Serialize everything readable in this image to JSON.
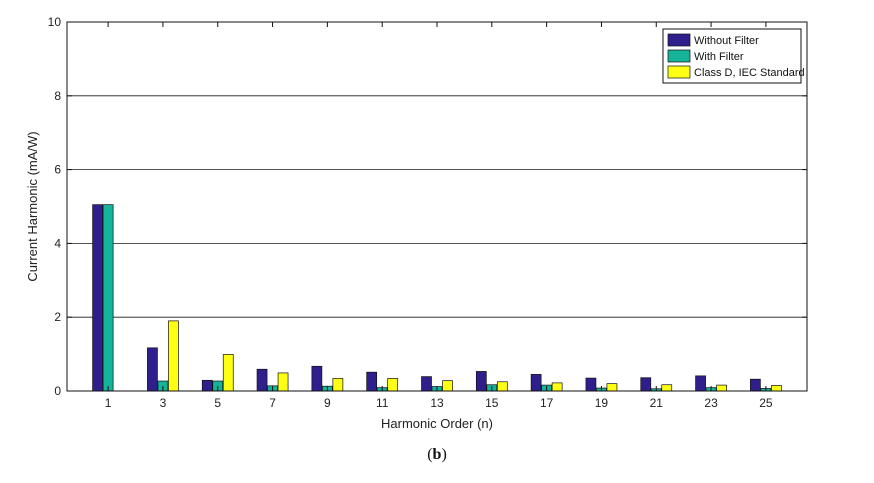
{
  "chart_data": {
    "type": "bar",
    "categories": [
      "1",
      "3",
      "5",
      "7",
      "9",
      "11",
      "13",
      "15",
      "17",
      "19",
      "21",
      "23",
      "25"
    ],
    "series": [
      {
        "name": "Without Filter",
        "color": "#2e1f8c",
        "values": [
          5.05,
          1.17,
          0.29,
          0.59,
          0.67,
          0.51,
          0.39,
          0.53,
          0.45,
          0.35,
          0.36,
          0.41,
          0.32
        ]
      },
      {
        "name": "With Filter",
        "color": "#14b39a",
        "values": [
          5.05,
          0.27,
          0.27,
          0.14,
          0.13,
          0.09,
          0.12,
          0.17,
          0.16,
          0.08,
          0.06,
          0.09,
          0.07
        ]
      },
      {
        "name": "Class D, IEC Standard",
        "color": "#ffff14",
        "values": [
          null,
          1.9,
          0.99,
          0.49,
          0.34,
          0.34,
          0.28,
          0.25,
          0.22,
          0.2,
          0.17,
          0.16,
          0.15
        ]
      }
    ],
    "xlabel": "Harmonic Order (n)",
    "ylabel": "Current Harmonic (mA/W)",
    "ylim": [
      0,
      10
    ],
    "yticks": [
      0,
      2,
      4,
      6,
      8,
      10
    ],
    "grid": "horizontal",
    "legend_position": "top-right"
  },
  "caption": {
    "open": "(",
    "letter": "b",
    "close": ")"
  }
}
